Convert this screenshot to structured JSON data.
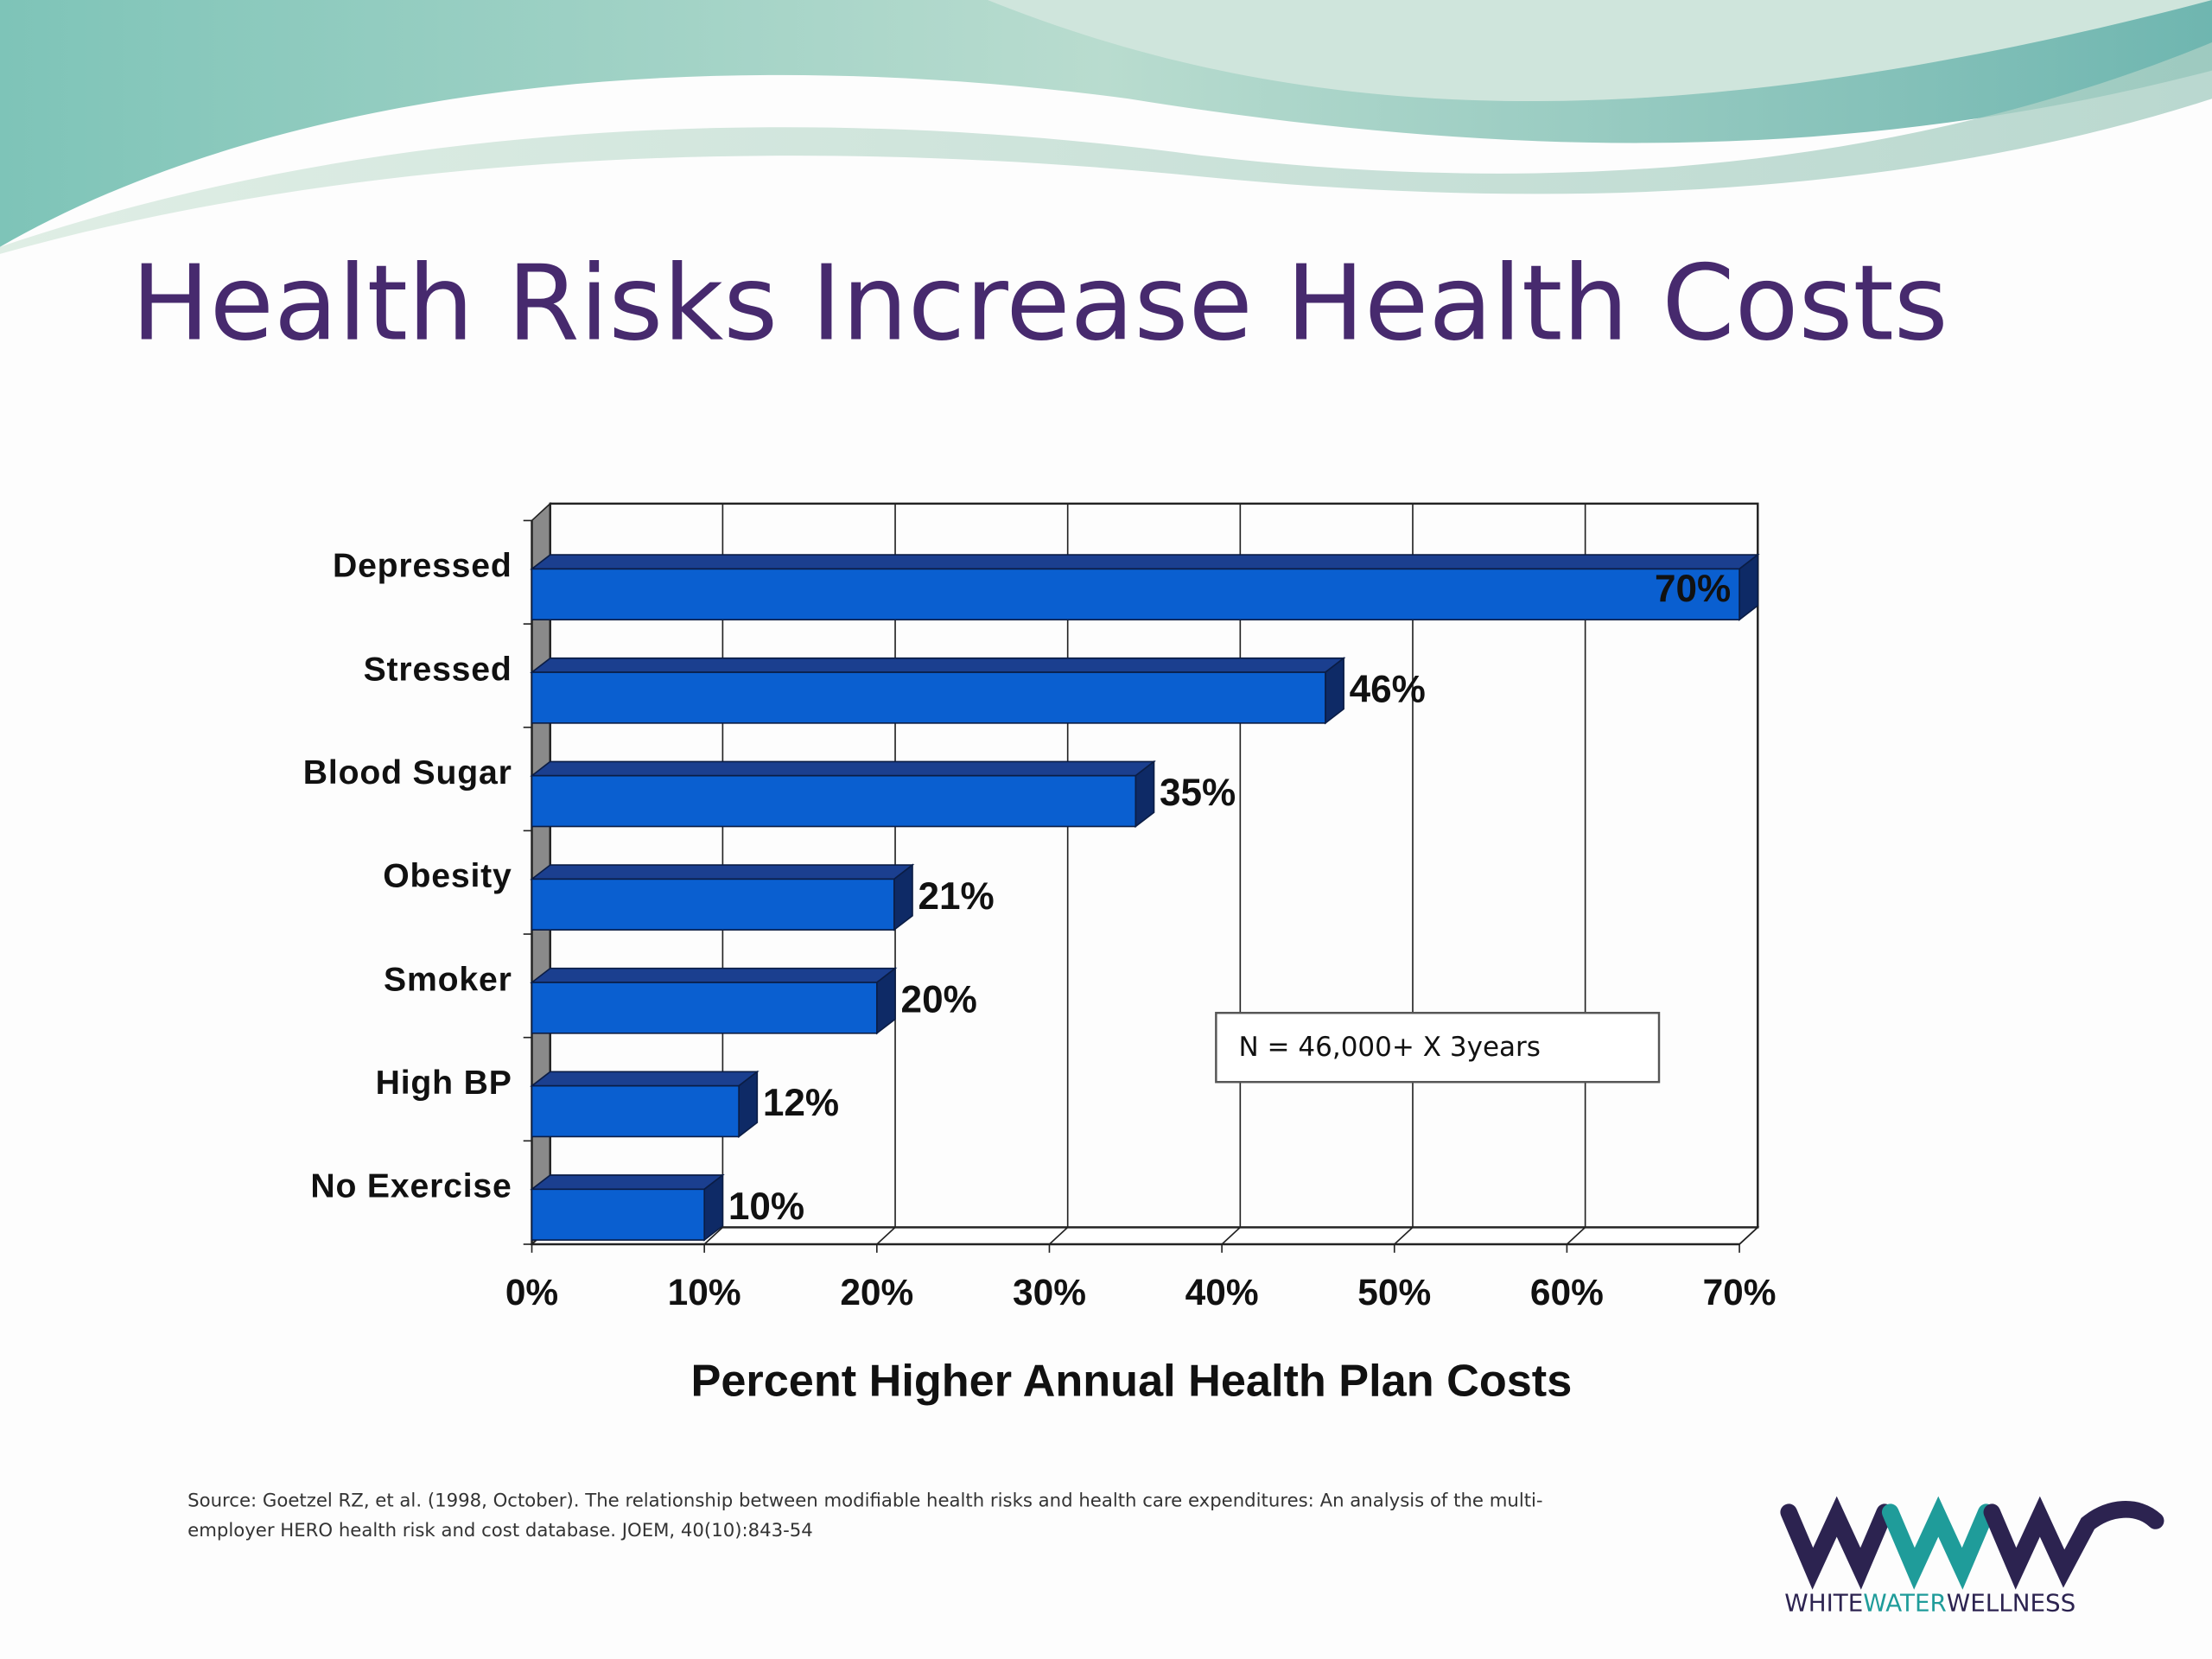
{
  "chart_data": {
    "type": "bar3d-horizontal",
    "title": "Health Risks Increase Health Costs",
    "x_label": "Percent Higher Annual Health Plan Costs",
    "annotation": "N = 46,000+ X 3years",
    "categories": [
      "Depressed",
      "Stressed",
      "Blood Sugar",
      "Obesity",
      "Smoker",
      "High BP",
      "No Exercise"
    ],
    "values": [
      70,
      46,
      35,
      21,
      20,
      12,
      10
    ],
    "value_labels": [
      "70%",
      "46%",
      "35%",
      "21%",
      "20%",
      "12%",
      "10%"
    ],
    "color": "#0a5fd0",
    "xlim": [
      0,
      70
    ],
    "xticks": [
      {
        "value": 0,
        "label": "0%"
      },
      {
        "value": 10,
        "label": "10%"
      },
      {
        "value": 20,
        "label": "20%"
      },
      {
        "value": 30,
        "label": "30%"
      },
      {
        "value": 40,
        "label": "40%"
      },
      {
        "value": 50,
        "label": "50%"
      },
      {
        "value": 60,
        "label": "60%"
      },
      {
        "value": 70,
        "label": "70%"
      }
    ],
    "grid": true
  },
  "source": [
    "Source: Goetzel RZ, et al. (1998, October). The relationship between modifiable health risks and health care expenditures: An analysis of the multi-",
    "employer HERO health risk and cost database. JOEM, 40(10):843-54"
  ],
  "logo": [
    "WHITE",
    "WATER",
    "WELLNESS"
  ]
}
